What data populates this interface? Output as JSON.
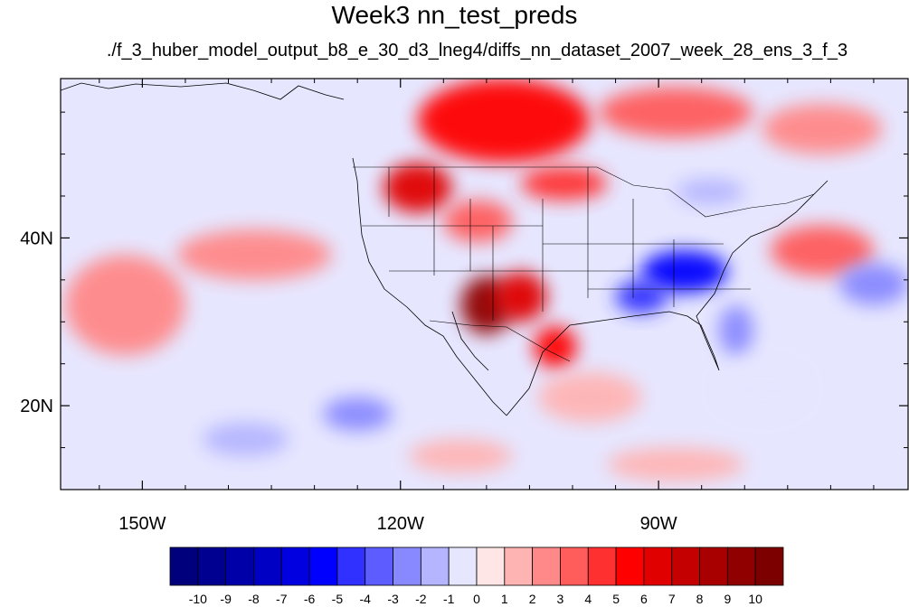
{
  "title": "Week3 nn_test_preds",
  "subtitle": "./f_3_huber_model_output_b8_e_30_d3_lneg4/diffs_nn_dataset_2007_week_28_ens_3_f_3",
  "axes": {
    "lon_ticks": [
      {
        "lon": -150,
        "label": "150W"
      },
      {
        "lon": -120,
        "label": "120W"
      },
      {
        "lon": -90,
        "label": "90W"
      }
    ],
    "lat_ticks": [
      {
        "lat": 40,
        "label": "40N"
      },
      {
        "lat": 20,
        "label": "20N"
      }
    ],
    "lon_range": [
      -159.5,
      -61.0
    ],
    "lat_range": [
      10.0,
      59.0
    ]
  },
  "colorbar": {
    "labels": [
      "-10",
      "-9",
      "-8",
      "-7",
      "-6",
      "-5",
      "-4",
      "-3",
      "-2",
      "-1",
      "0",
      "1",
      "2",
      "3",
      "4",
      "5",
      "6",
      "7",
      "8",
      "9",
      "10"
    ],
    "colors": [
      "#00007c",
      "#000090",
      "#0000a8",
      "#0000c4",
      "#0000e0",
      "#0000ff",
      "#3030ff",
      "#5c5cff",
      "#8888ff",
      "#b4b4ff",
      "#e6e6ff",
      "#ffe6e6",
      "#ffb4b4",
      "#ff8888",
      "#ff5c5c",
      "#ff3030",
      "#ff0000",
      "#e00000",
      "#c40000",
      "#a80000",
      "#900000",
      "#7c0000"
    ]
  },
  "field_regions": [
    {
      "lon": -108,
      "lat": 54,
      "rlon": 10,
      "rlat": 5,
      "value": 5
    },
    {
      "lon": -88,
      "lat": 55,
      "rlon": 9,
      "rlat": 3,
      "value": 3
    },
    {
      "lon": -71,
      "lat": 53,
      "rlon": 7,
      "rlat": 3,
      "value": 2
    },
    {
      "lon": -118,
      "lat": 46,
      "rlon": 4,
      "rlat": 3,
      "value": 6
    },
    {
      "lon": -101,
      "lat": 46.5,
      "rlon": 5,
      "rlat": 2,
      "value": 4
    },
    {
      "lon": -111,
      "lat": 42,
      "rlon": 4,
      "rlat": 2.5,
      "value": 3
    },
    {
      "lon": -110,
      "lat": 32,
      "rlon": 3,
      "rlat": 3.5,
      "value": 9
    },
    {
      "lon": -106,
      "lat": 33,
      "rlon": 3,
      "rlat": 3,
      "value": 6
    },
    {
      "lon": -102,
      "lat": 27,
      "rlon": 2.5,
      "rlat": 2.5,
      "value": 5
    },
    {
      "lon": -87,
      "lat": 36,
      "rlon": 5,
      "rlat": 2.5,
      "value": -6
    },
    {
      "lon": -92,
      "lat": 33,
      "rlon": 3,
      "rlat": 2,
      "value": -5
    },
    {
      "lon": -81,
      "lat": 29,
      "rlon": 2,
      "rlat": 3,
      "value": -3
    },
    {
      "lon": -84,
      "lat": 45.5,
      "rlon": 4,
      "rlat": 1.5,
      "value": -2
    },
    {
      "lon": -71,
      "lat": 38.5,
      "rlon": 6,
      "rlat": 3,
      "value": 3
    },
    {
      "lon": -65,
      "lat": 34.5,
      "rlon": 4,
      "rlat": 2.5,
      "value": -3
    },
    {
      "lon": -137,
      "lat": 38,
      "rlon": 9,
      "rlat": 3,
      "value": 2
    },
    {
      "lon": -152,
      "lat": 32,
      "rlon": 7,
      "rlat": 6,
      "value": 2
    },
    {
      "lon": -125,
      "lat": 19,
      "rlon": 4,
      "rlat": 2,
      "value": -3
    },
    {
      "lon": -138,
      "lat": 16,
      "rlon": 5,
      "rlat": 2,
      "value": -2
    },
    {
      "lon": -78,
      "lat": 22,
      "rlon": 5,
      "rlat": 3,
      "value": -1
    },
    {
      "lon": -88,
      "lat": 13,
      "rlon": 8,
      "rlat": 2,
      "value": 1
    },
    {
      "lon": -113,
      "lat": 14,
      "rlon": 6,
      "rlat": 2,
      "value": 1
    },
    {
      "lon": -98,
      "lat": 21,
      "rlon": 6,
      "rlat": 3,
      "value": 1
    }
  ]
}
